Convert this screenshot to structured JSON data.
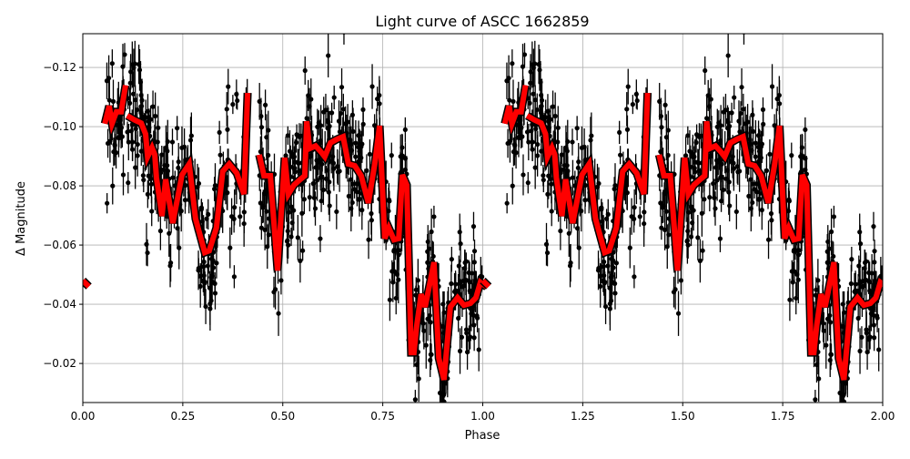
{
  "chart_data": {
    "type": "scatter",
    "title": "Light curve of ASCC 1662859",
    "xlabel": "Phase",
    "ylabel": "Δ Magnitude",
    "xlim": [
      0,
      2
    ],
    "ylim": [
      -0.1314,
      -0.0068
    ],
    "y_inverted": true,
    "grid": true,
    "x_ticks": [
      "0.00",
      "0.25",
      "0.50",
      "0.75",
      "1.00",
      "1.25",
      "1.50",
      "1.75",
      "2.00"
    ],
    "x_tick_values": [
      0,
      0.25,
      0.5,
      0.75,
      1,
      1.25,
      1.5,
      1.75,
      2
    ],
    "y_ticks": [
      "−0.12",
      "−0.10",
      "−0.08",
      "−0.06",
      "−0.04",
      "−0.02"
    ],
    "y_tick_values": [
      -0.12,
      -0.1,
      -0.08,
      -0.06,
      -0.04,
      -0.02
    ],
    "points_color": "#000000",
    "model_color": "#ff0000",
    "model_outline_color": "#000000",
    "model_segments": [
      [
        [
          0,
          -0.048
        ],
        [
          0.015,
          -0.046
        ]
      ],
      [
        [
          0.055,
          -0.101
        ],
        [
          0.066,
          -0.107
        ],
        [
          0.073,
          -0.101
        ],
        [
          0.084,
          -0.105
        ],
        [
          0.096,
          -0.105
        ],
        [
          0.107,
          -0.114
        ]
      ],
      [
        [
          0.111,
          -0.1037
        ],
        [
          0.13,
          -0.1022
        ],
        [
          0.146,
          -0.1012
        ],
        [
          0.157,
          -0.0975
        ],
        [
          0.162,
          -0.0898
        ],
        [
          0.173,
          -0.0929
        ],
        [
          0.18,
          -0.0905
        ],
        [
          0.184,
          -0.0828
        ],
        [
          0.198,
          -0.0698
        ],
        [
          0.207,
          -0.0822
        ],
        [
          0.225,
          -0.0674
        ],
        [
          0.248,
          -0.0837
        ],
        [
          0.266,
          -0.0874
        ],
        [
          0.282,
          -0.0689
        ],
        [
          0.305,
          -0.0575
        ],
        [
          0.316,
          -0.0581
        ],
        [
          0.334,
          -0.0658
        ],
        [
          0.35,
          -0.0849
        ],
        [
          0.366,
          -0.0874
        ],
        [
          0.385,
          -0.0843
        ],
        [
          0.403,
          -0.0772
        ],
        [
          0.412,
          -0.1114
        ]
      ],
      [
        [
          0.441,
          -0.0905
        ],
        [
          0.453,
          -0.0834
        ],
        [
          0.469,
          -0.0834
        ],
        [
          0.487,
          -0.0514
        ],
        [
          0.505,
          -0.0895
        ],
        [
          0.514,
          -0.0772
        ],
        [
          0.528,
          -0.0803
        ],
        [
          0.544,
          -0.0822
        ],
        [
          0.555,
          -0.0834
        ],
        [
          0.56,
          -0.1018
        ],
        [
          0.567,
          -0.0926
        ],
        [
          0.582,
          -0.0935
        ],
        [
          0.596,
          -0.0914
        ],
        [
          0.605,
          -0.0898
        ],
        [
          0.619,
          -0.0945
        ],
        [
          0.635,
          -0.0957
        ],
        [
          0.651,
          -0.0966
        ],
        [
          0.664,
          -0.0874
        ],
        [
          0.68,
          -0.0868
        ],
        [
          0.696,
          -0.0834
        ],
        [
          0.714,
          -0.0742
        ],
        [
          0.73,
          -0.0874
        ],
        [
          0.742,
          -0.1003
        ],
        [
          0.755,
          -0.0622
        ],
        [
          0.765,
          -0.0658
        ],
        [
          0.778,
          -0.0618
        ],
        [
          0.79,
          -0.0622
        ],
        [
          0.799,
          -0.0837
        ],
        [
          0.81,
          -0.0803
        ],
        [
          0.821,
          -0.0237
        ],
        [
          0.828,
          -0.0237
        ],
        [
          0.835,
          -0.0329
        ],
        [
          0.846,
          -0.0434
        ],
        [
          0.856,
          -0.0391
        ],
        [
          0.867,
          -0.0465
        ],
        [
          0.878,
          -0.0542
        ],
        [
          0.89,
          -0.0218
        ],
        [
          0.903,
          -0.0145
        ],
        [
          0.919,
          -0.0391
        ],
        [
          0.937,
          -0.0422
        ],
        [
          0.953,
          -0.0397
        ],
        [
          0.969,
          -0.0403
        ],
        [
          0.983,
          -0.0422
        ],
        [
          0.994,
          -0.0474
        ],
        [
          1.01,
          -0.0458
        ]
      ]
    ],
    "model_repeat_offsets": [
      0,
      1
    ]
  }
}
